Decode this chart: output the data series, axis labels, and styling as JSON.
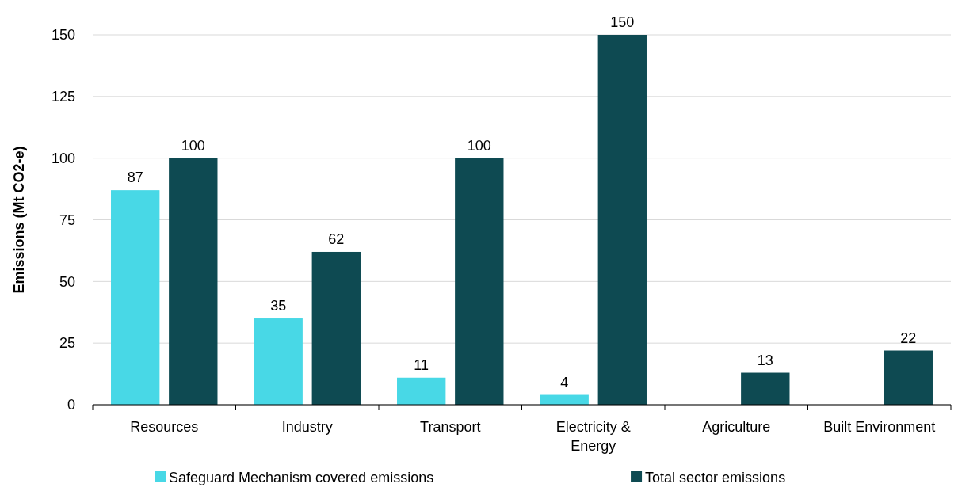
{
  "chart_data": {
    "type": "bar",
    "ylabel": "Emissions (Mt CO2-e)",
    "categories": [
      "Resources",
      "Industry",
      "Transport",
      "Electricity & Energy",
      "Agriculture",
      "Built Environment"
    ],
    "series": [
      {
        "name": "Safeguard Mechanism covered emissions",
        "color": "#48d8e6",
        "values": [
          87,
          35,
          11,
          4,
          null,
          null
        ]
      },
      {
        "name": "Total sector emissions",
        "color": "#0e4a52",
        "values": [
          100,
          62,
          100,
          150,
          13,
          22
        ]
      }
    ],
    "ylim": [
      0,
      150
    ],
    "yticks": [
      0,
      25,
      50,
      75,
      100,
      125,
      150
    ],
    "grid": "y",
    "legend": "bottom",
    "data_labels": true
  }
}
